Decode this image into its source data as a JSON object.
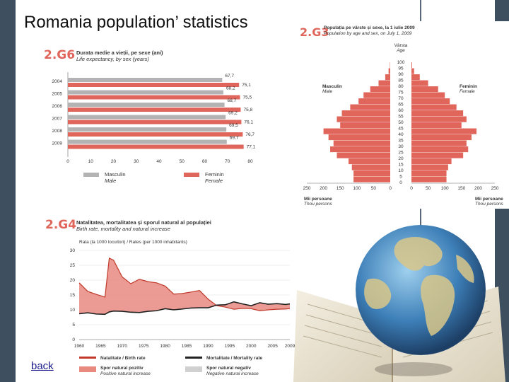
{
  "slide": {
    "title": "Romania population’ statistics",
    "back_link": "back"
  },
  "life_expectancy": {
    "code": "2.G6",
    "title_ro": "Durata medie a vieții, pe sexe (ani)",
    "title_en": "Life expectancy, by sex (years)",
    "legend_male_ro": "Masculin",
    "legend_male_en": "Male",
    "legend_female_ro": "Feminin",
    "legend_female_en": "Female"
  },
  "pyramid": {
    "code": "2.G3",
    "title_ro": "Populația pe vârste și sexe, la 1 iulie 2009",
    "title_en": "Population by age and sex, on July 1, 2009",
    "age_label_ro": "Vârsta",
    "age_label_en": "Age",
    "male_ro": "Masculin",
    "male_en": "Male",
    "female_ro": "Feminin",
    "female_en": "Female",
    "left_unit_ro": "Mii persoane",
    "left_unit_en": "Thou persons",
    "right_unit_ro": "Mii persoane",
    "right_unit_en": "Thou persons"
  },
  "natality": {
    "code": "2.G4",
    "title_ro": "Natalitatea, mortalitatea și sporul natural al populației",
    "title_en": "Birth rate, mortality and natural increase",
    "axis_label": "Rata (la 1000 locuitori) / Rates (per 1000 inhabitants)",
    "legend_birth": "Natalitate / Birth rate",
    "legend_mortality": "Mortalitate / Mortality rate",
    "legend_pos_ro": "Spor natural pozitiv",
    "legend_pos_en": "Positive natural increase",
    "legend_neg_ro": "Spor natural negativ",
    "legend_neg_en": "Negative natural increase"
  },
  "colors": {
    "male": "#b3b3b3",
    "female": "#e0665c",
    "background_frame": "#3e4f60"
  },
  "chart_data": [
    {
      "type": "bar",
      "categories": [
        "2004",
        "2005",
        "2006",
        "2007",
        "2008",
        "2009"
      ],
      "series": [
        {
          "name": "Masculin",
          "values": [
            67.7,
            68.2,
            68.7,
            69.2,
            69.5,
            69.7
          ]
        },
        {
          "name": "Feminin",
          "values": [
            75.1,
            75.5,
            75.8,
            76.1,
            76.7,
            77.1
          ]
        }
      ],
      "xlim": [
        0,
        80
      ],
      "xticks": [
        0,
        10,
        20,
        30,
        40,
        50,
        60,
        70,
        80
      ],
      "orientation": "horizontal"
    },
    {
      "type": "bar",
      "orientation": "horizontal",
      "age_ticks": [
        0,
        5,
        10,
        15,
        20,
        25,
        30,
        35,
        40,
        45,
        50,
        55,
        60,
        65,
        70,
        75,
        80,
        85,
        90,
        95,
        100
      ],
      "ages": [
        0,
        5,
        10,
        15,
        20,
        25,
        30,
        35,
        40,
        45,
        50,
        55,
        60,
        65,
        70,
        75,
        80,
        85,
        90,
        95
      ],
      "series": [
        {
          "name": "Masculin",
          "values": [
            110,
            110,
            115,
            125,
            160,
            180,
            170,
            185,
            200,
            150,
            160,
            145,
            120,
            95,
            80,
            60,
            35,
            15,
            5,
            1
          ]
        },
        {
          "name": "Feminin",
          "values": [
            105,
            105,
            110,
            120,
            155,
            170,
            165,
            180,
            195,
            150,
            165,
            155,
            135,
            115,
            100,
            80,
            50,
            25,
            8,
            2
          ]
        }
      ],
      "xticks": [
        250,
        200,
        150,
        100,
        50,
        0,
        50,
        100,
        150,
        200,
        250
      ],
      "xlim": [
        0,
        250
      ]
    },
    {
      "type": "area",
      "x": [
        1960,
        1962,
        1964,
        1966,
        1967,
        1968,
        1970,
        1972,
        1974,
        1976,
        1978,
        1980,
        1982,
        1984,
        1986,
        1988,
        1990,
        1992,
        1994,
        1996,
        1998,
        2000,
        2002,
        2004,
        2006,
        2008,
        2009
      ],
      "series": [
        {
          "name": "Natalitate / Birth rate",
          "values": [
            19.1,
            16.2,
            15.2,
            14.3,
            27.4,
            26.7,
            21.1,
            18.8,
            20.3,
            19.5,
            19.1,
            18.0,
            15.3,
            15.5,
            16.0,
            16.5,
            13.6,
            11.4,
            10.9,
            10.2,
            10.5,
            10.4,
            9.7,
            10.0,
            10.2,
            10.3,
            10.4
          ]
        },
        {
          "name": "Mortalitate / Mortality rate",
          "values": [
            8.7,
            9.0,
            8.6,
            8.5,
            9.3,
            9.6,
            9.5,
            9.2,
            9.1,
            9.5,
            9.7,
            10.4,
            10.0,
            10.3,
            10.6,
            10.7,
            10.7,
            11.6,
            11.7,
            12.7,
            12.0,
            11.4,
            12.4,
            11.9,
            12.1,
            11.8,
            12.0
          ]
        }
      ],
      "xticks": [
        1960,
        1965,
        1970,
        1975,
        1980,
        1985,
        1990,
        1995,
        2000,
        2005,
        2009
      ],
      "ylim": [
        0,
        30
      ],
      "yticks": [
        0,
        5,
        10,
        15,
        20,
        25,
        30
      ]
    }
  ]
}
